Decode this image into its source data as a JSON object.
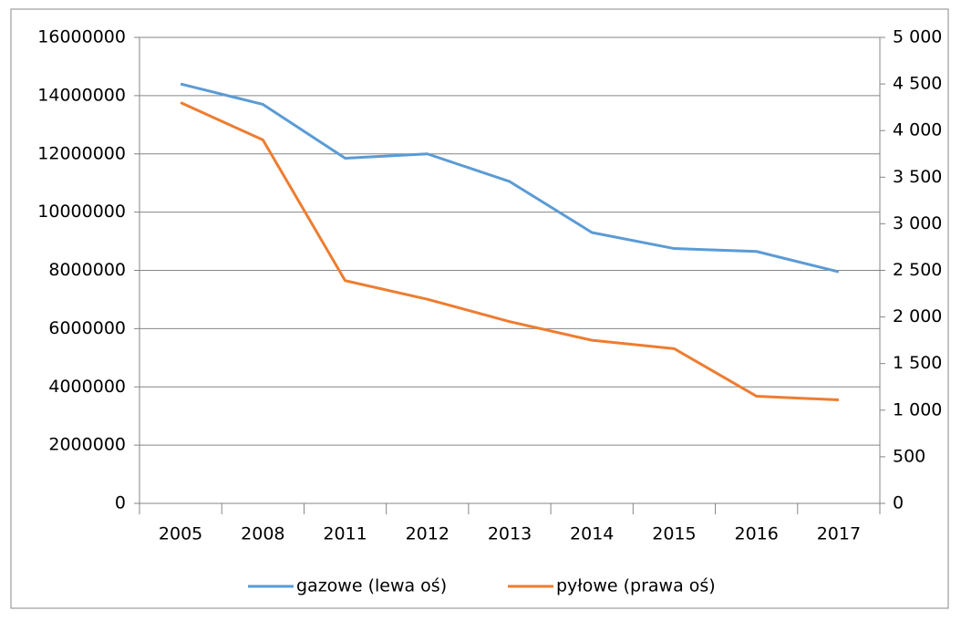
{
  "chart_data": {
    "type": "line",
    "categories": [
      "2005",
      "2008",
      "2011",
      "2012",
      "2013",
      "2014",
      "2015",
      "2016",
      "2017"
    ],
    "series": [
      {
        "name": "gazowe (lewa oś)",
        "color": "#5b9bd5",
        "axis": "y",
        "values": [
          14400000,
          13700000,
          11850000,
          12000000,
          11050000,
          9300000,
          8750000,
          8650000,
          7950000
        ]
      },
      {
        "name": "pyłowe (prawa oś)",
        "color": "#ed7d31",
        "axis": "y2",
        "values": [
          4300,
          3900,
          2390,
          2190,
          1950,
          1750,
          1660,
          1150,
          1110
        ]
      }
    ],
    "ylim": [
      0,
      16000000
    ],
    "yticks": [
      0,
      2000000,
      4000000,
      6000000,
      8000000,
      10000000,
      12000000,
      14000000,
      16000000
    ],
    "y2lim": [
      0,
      5000
    ],
    "y2ticks": [
      0,
      500,
      {
        "value": 1000,
        "label": "1 000"
      },
      {
        "value": 1500,
        "label": "1 500"
      },
      {
        "value": 2000,
        "label": "2 000"
      },
      {
        "value": 2500,
        "label": "2 500"
      },
      {
        "value": 3000,
        "label": "3 000"
      },
      {
        "value": 3500,
        "label": "3 500"
      },
      {
        "value": 4000,
        "label": "4 000"
      },
      {
        "value": 4500,
        "label": "4 500"
      },
      {
        "value": 5000,
        "label": "5 000"
      }
    ],
    "grid": true,
    "legend": "bottom"
  }
}
